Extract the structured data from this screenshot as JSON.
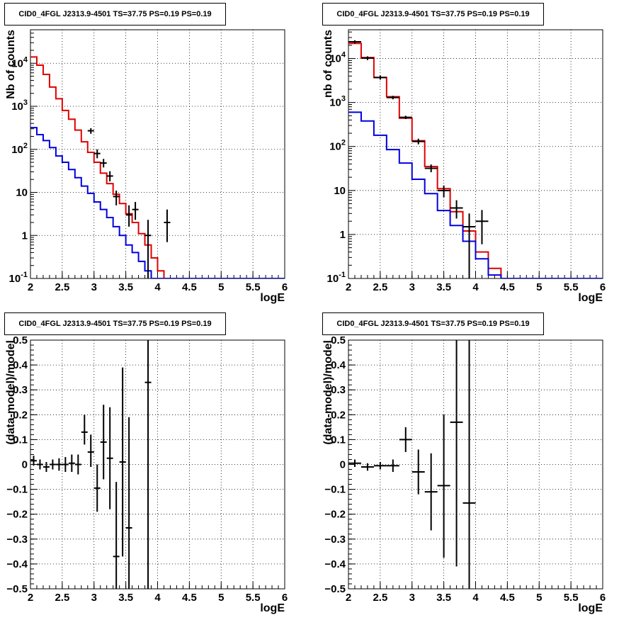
{
  "chart_data": [
    {
      "type": "line",
      "title": "CID0_4FGL J2313.9-4501 TS=37.75 PS=0.19 PS=0.19",
      "xlabel": "logE",
      "ylabel": "Nb of counts",
      "xlim": [
        2,
        6
      ],
      "ylim": [
        0.1,
        60000
      ],
      "yscale": "log",
      "grid": true,
      "x_ticks": [
        "2",
        "2.5",
        "3",
        "3.5",
        "4",
        "4.5",
        "5",
        "5.5",
        "6"
      ],
      "y_ticks": [
        "10^-1",
        "1",
        "10",
        "10^2",
        "10^3",
        "10^4"
      ],
      "bin_edges": [
        2.0,
        2.1,
        2.2,
        2.3,
        2.4,
        2.5,
        2.6,
        2.7,
        2.8,
        2.9,
        3.0,
        3.1,
        3.2,
        3.3,
        3.4,
        3.5,
        3.6,
        3.7,
        3.8,
        3.9,
        4.0,
        4.1,
        4.2,
        4.3,
        4.4,
        4.5,
        4.6,
        4.7,
        4.8,
        4.9,
        5.0,
        5.1,
        5.2,
        5.3,
        5.4,
        5.5,
        5.6,
        5.7,
        5.8,
        5.9,
        6.0
      ],
      "series": [
        {
          "color": "#e00000",
          "style": "hist",
          "values": [
            14000,
            9000,
            5500,
            2800,
            1500,
            800,
            500,
            280,
            150,
            85,
            50,
            28,
            16,
            9,
            5.5,
            3.2,
            2,
            1.1,
            0.6,
            0.3,
            0.15,
            0.1,
            0.1,
            0.1,
            0.1,
            0.1,
            0.1,
            0.1,
            0.1,
            0.1,
            0.1,
            0.1,
            0.1,
            0.1,
            0.1,
            0.1,
            0.1,
            0.1,
            0.1,
            0.1
          ]
        },
        {
          "color": "#0000e0",
          "style": "hist",
          "values": [
            320,
            220,
            160,
            110,
            70,
            50,
            34,
            22,
            14,
            9.5,
            6,
            4,
            2.6,
            1.6,
            1,
            0.6,
            0.4,
            0.25,
            0.15,
            0.1,
            0.1,
            0.1,
            0.1,
            0.1,
            0.1,
            0.1,
            0.1,
            0.1,
            0.1,
            0.1,
            0.1,
            0.1,
            0.1,
            0.1,
            0.1,
            0.1,
            0.1,
            0.1,
            0.1,
            0.1
          ]
        },
        {
          "color": "#000000",
          "style": "points",
          "points": [
            {
              "x": 2.95,
              "y": 270,
              "lo": 230,
              "hi": 310
            },
            {
              "x": 3.05,
              "y": 80,
              "lo": 62,
              "hi": 100
            },
            {
              "x": 3.15,
              "y": 48,
              "lo": 38,
              "hi": 60
            },
            {
              "x": 3.25,
              "y": 24,
              "lo": 18,
              "hi": 31
            },
            {
              "x": 3.35,
              "y": 8,
              "lo": 5,
              "hi": 11
            },
            {
              "x": 3.55,
              "y": 3,
              "lo": 1.6,
              "hi": 5
            },
            {
              "x": 3.65,
              "y": 4,
              "lo": 2.3,
              "hi": 6
            },
            {
              "x": 3.85,
              "y": 1,
              "lo": 0.1,
              "hi": 2.3
            },
            {
              "x": 4.15,
              "y": 2,
              "lo": 0.7,
              "hi": 4
            }
          ]
        }
      ]
    },
    {
      "type": "line",
      "title": "CID0_4FGL J2313.9-4501 TS=37.75 PS=0.19 PS=0.19",
      "xlabel": "logE",
      "ylabel": "nb of counts",
      "xlim": [
        2,
        6
      ],
      "ylim": [
        0.1,
        45000
      ],
      "yscale": "log",
      "grid": true,
      "x_ticks": [
        "2",
        "2.5",
        "3",
        "3.5",
        "4",
        "4.5",
        "5",
        "5.5",
        "6"
      ],
      "y_ticks": [
        "10^-1",
        "1",
        "10",
        "10^2",
        "10^3",
        "10^4"
      ],
      "bin_edges": [
        2.0,
        2.2,
        2.4,
        2.6,
        2.8,
        3.0,
        3.2,
        3.4,
        3.6,
        3.8,
        4.0,
        4.2,
        4.4,
        4.6,
        4.8,
        5.0,
        5.2,
        5.4,
        5.6,
        5.8,
        6.0
      ],
      "series": [
        {
          "color": "#e00000",
          "style": "hist",
          "values": [
            22000,
            10500,
            3700,
            1350,
            440,
            135,
            35,
            11,
            3.3,
            1.2,
            0.4,
            0.17,
            0.1,
            0.1,
            0.1,
            0.1,
            0.1,
            0.1,
            0.1,
            0.1
          ]
        },
        {
          "color": "#0000e0",
          "style": "hist",
          "values": [
            600,
            380,
            180,
            85,
            42,
            18,
            8.5,
            3.5,
            1.6,
            0.7,
            0.28,
            0.12,
            0.1,
            0.1,
            0.1,
            0.1,
            0.1,
            0.1,
            0.1,
            0.1
          ]
        },
        {
          "color": "#000000",
          "style": "points",
          "points": [
            {
              "x": 2.1,
              "y": 24000,
              "lo": 22000,
              "hi": 26000
            },
            {
              "x": 2.3,
              "y": 10200,
              "lo": 9200,
              "hi": 11200
            },
            {
              "x": 2.5,
              "y": 3700,
              "lo": 3300,
              "hi": 4100
            },
            {
              "x": 2.7,
              "y": 1300,
              "lo": 1180,
              "hi": 1420
            },
            {
              "x": 2.9,
              "y": 460,
              "lo": 420,
              "hi": 500
            },
            {
              "x": 3.1,
              "y": 130,
              "lo": 112,
              "hi": 150
            },
            {
              "x": 3.3,
              "y": 32,
              "lo": 26,
              "hi": 39
            },
            {
              "x": 3.5,
              "y": 10,
              "lo": 7,
              "hi": 13
            },
            {
              "x": 3.7,
              "y": 4,
              "lo": 2.3,
              "hi": 6
            },
            {
              "x": 3.9,
              "y": 1.5,
              "lo": 0.1,
              "hi": 3
            },
            {
              "x": 4.1,
              "y": 2,
              "lo": 0.6,
              "hi": 3.6
            }
          ]
        }
      ]
    },
    {
      "type": "scatter",
      "title": "CID0_4FGL J2313.9-4501 TS=37.75 PS=0.19 PS=0.19",
      "xlabel": "logE",
      "ylabel": "(data-model)/model",
      "xlim": [
        2,
        6
      ],
      "ylim": [
        -0.5,
        0.5
      ],
      "grid": true,
      "x_ticks": [
        "2",
        "2.5",
        "3",
        "3.5",
        "4",
        "4.5",
        "5",
        "5.5",
        "6"
      ],
      "y_ticks": [
        "-0.5",
        "-0.4",
        "-0.3",
        "-0.2",
        "-0.1",
        "0",
        "0.1",
        "0.2",
        "0.3",
        "0.4",
        "0.5"
      ],
      "points": [
        {
          "x": 2.05,
          "y": 0.015,
          "xerr": 0.05,
          "lo": -0.005,
          "hi": 0.035
        },
        {
          "x": 2.15,
          "y": 0.0,
          "xerr": 0.05,
          "lo": -0.02,
          "hi": 0.02
        },
        {
          "x": 2.25,
          "y": -0.01,
          "xerr": 0.05,
          "lo": -0.03,
          "hi": 0.01
        },
        {
          "x": 2.35,
          "y": 0.0,
          "xerr": 0.05,
          "lo": -0.02,
          "hi": 0.02
        },
        {
          "x": 2.45,
          "y": 0.0,
          "xerr": 0.05,
          "lo": -0.025,
          "hi": 0.025
        },
        {
          "x": 2.55,
          "y": 0.0,
          "xerr": 0.05,
          "lo": -0.03,
          "hi": 0.03
        },
        {
          "x": 2.65,
          "y": 0.005,
          "xerr": 0.05,
          "lo": -0.03,
          "hi": 0.04
        },
        {
          "x": 2.75,
          "y": 0.0,
          "xerr": 0.05,
          "lo": -0.04,
          "hi": 0.04
        },
        {
          "x": 2.85,
          "y": 0.13,
          "xerr": 0.05,
          "lo": 0.08,
          "hi": 0.2
        },
        {
          "x": 2.95,
          "y": 0.05,
          "xerr": 0.05,
          "lo": -0.01,
          "hi": 0.12
        },
        {
          "x": 3.05,
          "y": -0.095,
          "xerr": 0.05,
          "lo": -0.19,
          "hi": 0.0
        },
        {
          "x": 3.15,
          "y": 0.09,
          "xerr": 0.05,
          "lo": -0.06,
          "hi": 0.24
        },
        {
          "x": 3.25,
          "y": 0.025,
          "xerr": 0.05,
          "lo": -0.18,
          "hi": 0.23
        },
        {
          "x": 3.35,
          "y": -0.37,
          "xerr": 0.05,
          "lo": -0.5,
          "hi": -0.07
        },
        {
          "x": 3.45,
          "y": 0.01,
          "xerr": 0.05,
          "lo": -0.37,
          "hi": 0.39
        },
        {
          "x": 3.55,
          "y": -0.255,
          "xerr": 0.05,
          "lo": -0.5,
          "hi": 0.19
        },
        {
          "x": 3.85,
          "y": 0.33,
          "xerr": 0.05,
          "lo": -0.5,
          "hi": 0.5
        }
      ]
    },
    {
      "type": "scatter",
      "title": "CID0_4FGL J2313.9-4501 TS=37.75 PS=0.19 PS=0.19",
      "xlabel": "logE",
      "ylabel": "(data-model)/model",
      "xlim": [
        2,
        6
      ],
      "ylim": [
        -0.5,
        0.5
      ],
      "grid": true,
      "x_ticks": [
        "2",
        "2.5",
        "3",
        "3.5",
        "4",
        "4.5",
        "5",
        "5.5",
        "6"
      ],
      "y_ticks": [
        "-0.5",
        "-0.4",
        "-0.3",
        "-0.2",
        "-0.1",
        "0",
        "0.1",
        "0.2",
        "0.3",
        "0.4",
        "0.5"
      ],
      "points": [
        {
          "x": 2.1,
          "y": 0.005,
          "xerr": 0.1,
          "lo": -0.01,
          "hi": 0.02
        },
        {
          "x": 2.3,
          "y": -0.01,
          "xerr": 0.1,
          "lo": -0.025,
          "hi": 0.005
        },
        {
          "x": 2.5,
          "y": -0.005,
          "xerr": 0.1,
          "lo": -0.02,
          "hi": 0.01
        },
        {
          "x": 2.7,
          "y": -0.005,
          "xerr": 0.1,
          "lo": -0.03,
          "hi": 0.02
        },
        {
          "x": 2.9,
          "y": 0.1,
          "xerr": 0.1,
          "lo": 0.05,
          "hi": 0.15
        },
        {
          "x": 3.1,
          "y": -0.03,
          "xerr": 0.1,
          "lo": -0.12,
          "hi": 0.06
        },
        {
          "x": 3.3,
          "y": -0.11,
          "xerr": 0.1,
          "lo": -0.265,
          "hi": 0.045
        },
        {
          "x": 3.5,
          "y": -0.085,
          "xerr": 0.1,
          "lo": -0.375,
          "hi": 0.2
        },
        {
          "x": 3.7,
          "y": 0.17,
          "xerr": 0.1,
          "lo": -0.41,
          "hi": 0.5
        },
        {
          "x": 3.9,
          "y": -0.155,
          "xerr": 0.1,
          "lo": -0.5,
          "hi": 0.5
        }
      ]
    }
  ]
}
